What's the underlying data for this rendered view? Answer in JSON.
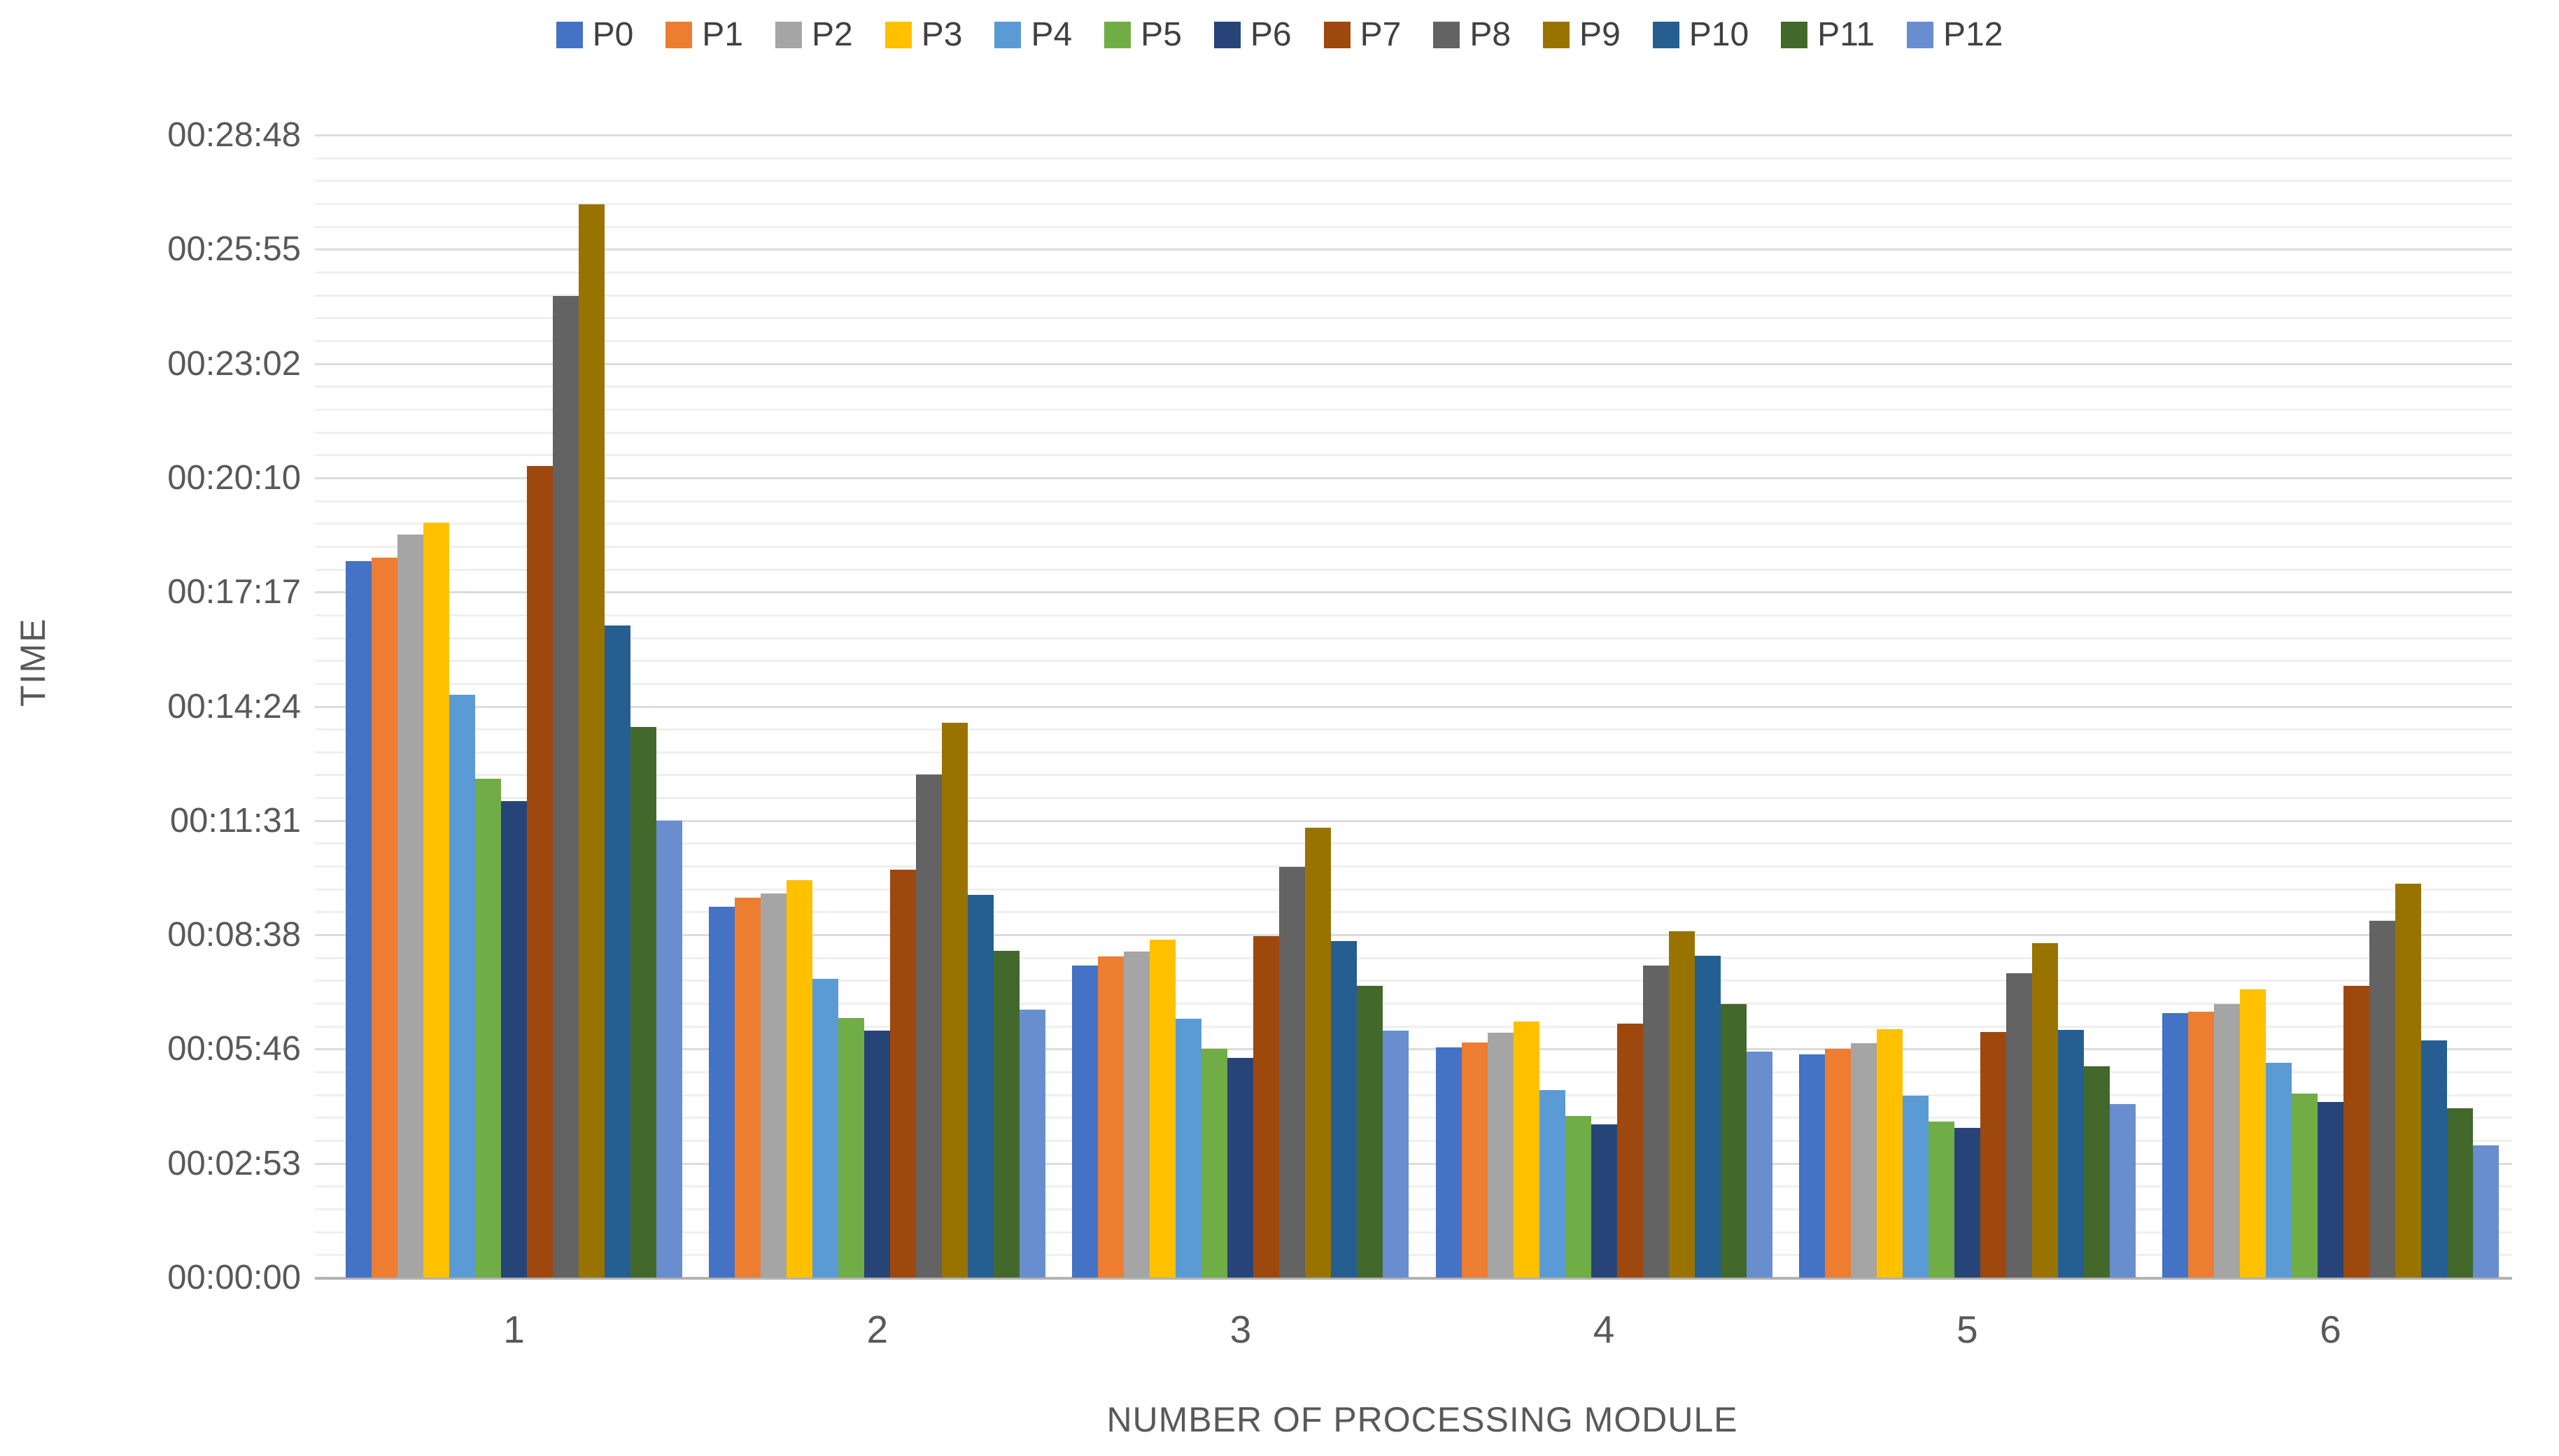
{
  "chart_data": {
    "type": "bar",
    "title": "",
    "xlabel": "NUMBER OF PROCESSING MODULE",
    "ylabel": "TIME",
    "categories": [
      "1",
      "2",
      "3",
      "4",
      "5",
      "6"
    ],
    "ylim_seconds": [
      0,
      1728
    ],
    "y_major_unit_seconds": 172.8,
    "y_minor_unit_seconds": 34.56,
    "grid": "horizontal, minor + major light gray lines",
    "legend_position": "top-center",
    "y_tick_labels": [
      "00:00:00",
      "00:02:53",
      "00:05:46",
      "00:08:38",
      "00:11:31",
      "00:14:24",
      "00:17:17",
      "00:20:10",
      "00:23:02",
      "00:25:55",
      "00:28:48"
    ],
    "series": [
      {
        "name": "P0",
        "color": "#4472C4",
        "values_seconds": [
          1084,
          561,
          472,
          348,
          338,
          400
        ],
        "values_hms": [
          "0:18:04",
          "0:09:21",
          "0:07:52",
          "0:05:48",
          "0:05:38",
          "0:06:40"
        ]
      },
      {
        "name": "P1",
        "color": "#ED7D31",
        "values_seconds": [
          1089,
          575,
          486,
          356,
          346,
          402
        ],
        "values_hms": [
          "0:18:09",
          "0:09:35",
          "0:08:06",
          "0:05:56",
          "0:05:46",
          "0:06:42"
        ]
      },
      {
        "name": "P2",
        "color": "#A5A5A5",
        "values_seconds": [
          1124,
          581,
          493,
          370,
          354,
          414
        ],
        "values_hms": [
          "0:18:44",
          "0:09:41",
          "0:08:13",
          "0:06:10",
          "0:05:54",
          "0:06:54"
        ]
      },
      {
        "name": "P3",
        "color": "#FFC000",
        "values_seconds": [
          1142,
          601,
          511,
          387,
          376,
          436
        ],
        "values_hms": [
          "0:19:02",
          "0:10:01",
          "0:08:31",
          "0:06:27",
          "0:06:16",
          "0:07:16"
        ]
      },
      {
        "name": "P4",
        "color": "#5B9BD5",
        "values_seconds": [
          881,
          452,
          392,
          284,
          275,
          325
        ],
        "values_hms": [
          "0:14:41",
          "0:07:32",
          "0:06:32",
          "0:04:44",
          "0:04:35",
          "0:05:25"
        ]
      },
      {
        "name": "P5",
        "color": "#70AD47",
        "values_seconds": [
          754,
          393,
          346,
          244,
          236,
          278
        ],
        "values_hms": [
          "0:12:34",
          "0:06:33",
          "0:05:46",
          "0:04:04",
          "0:03:56",
          "0:04:38"
        ]
      },
      {
        "name": "P6",
        "color": "#264478",
        "values_seconds": [
          721,
          374,
          332,
          232,
          226,
          266
        ],
        "values_hms": [
          "0:12:01",
          "0:06:14",
          "0:05:32",
          "0:03:52",
          "0:03:46",
          "0:04:26"
        ]
      },
      {
        "name": "P7",
        "color": "#9E480E",
        "values_seconds": [
          1228,
          617,
          516,
          384,
          371,
          441
        ],
        "values_hms": [
          "0:20:28",
          "0:10:17",
          "0:08:36",
          "0:06:24",
          "0:06:11",
          "0:07:21"
        ]
      },
      {
        "name": "P8",
        "color": "#636363",
        "values_seconds": [
          1485,
          761,
          621,
          472,
          460,
          540
        ],
        "values_hms": [
          "0:24:45",
          "0:12:41",
          "0:10:21",
          "0:07:52",
          "0:07:40",
          "0:09:00"
        ]
      },
      {
        "name": "P9",
        "color": "#997300",
        "values_seconds": [
          1623,
          839,
          680,
          524,
          506,
          596
        ],
        "values_hms": [
          "0:27:03",
          "0:13:59",
          "0:11:20",
          "0:08:44",
          "0:08:26",
          "0:09:56"
        ]
      },
      {
        "name": "P10",
        "color": "#255E91",
        "values_seconds": [
          986,
          579,
          509,
          487,
          375,
          359
        ],
        "values_hms": [
          "0:16:26",
          "0:09:39",
          "0:08:29",
          "0:08:07",
          "0:06:15",
          "0:05:59"
        ]
      },
      {
        "name": "P11",
        "color": "#43682B",
        "values_seconds": [
          833,
          494,
          441,
          414,
          320,
          256
        ],
        "values_hms": [
          "0:13:53",
          "0:08:14",
          "0:07:21",
          "0:06:54",
          "0:05:20",
          "0:04:16"
        ]
      },
      {
        "name": "P12",
        "color": "#698ED0",
        "values_seconds": [
          691,
          405,
          374,
          342,
          262,
          200
        ],
        "values_hms": [
          "0:11:31",
          "0:06:45",
          "0:06:14",
          "0:05:42",
          "0:04:22",
          "0:03:20"
        ]
      }
    ]
  },
  "axes": {
    "x_title": "NUMBER OF PROCESSING MODULE",
    "y_title": "TIME"
  }
}
